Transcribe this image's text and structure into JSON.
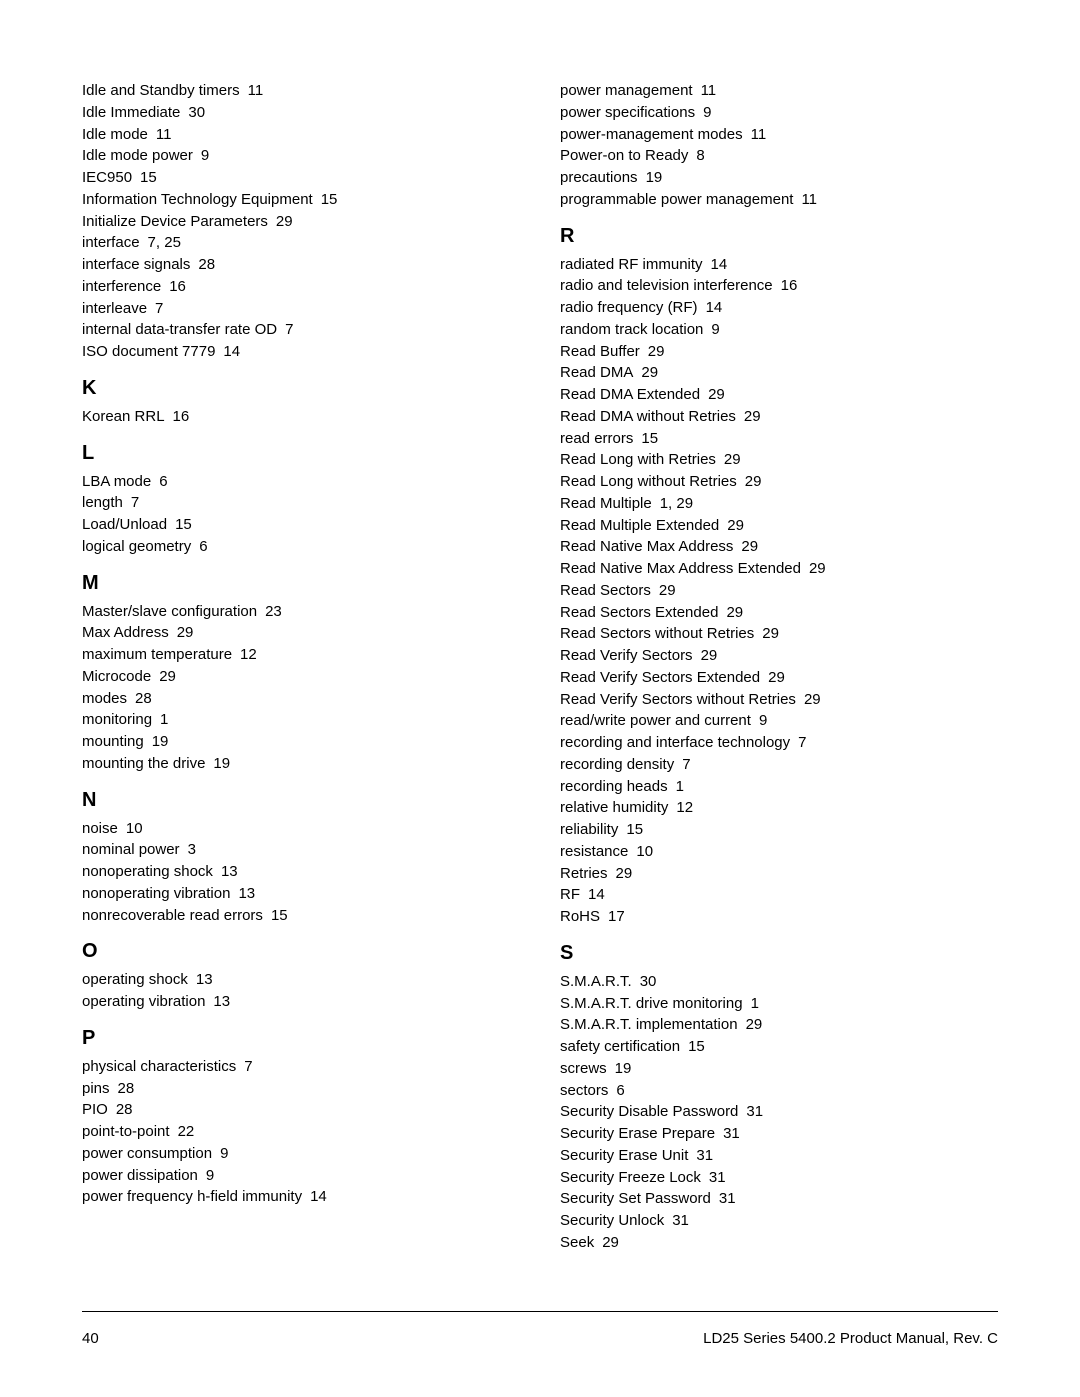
{
  "left": {
    "groups": [
      {
        "letter": null,
        "entries": [
          {
            "term": "Idle and Standby timers",
            "pages": "11"
          },
          {
            "term": "Idle Immediate",
            "pages": "30"
          },
          {
            "term": "Idle mode",
            "pages": "11"
          },
          {
            "term": "Idle mode power",
            "pages": "9"
          },
          {
            "term": "IEC950",
            "pages": "15"
          },
          {
            "term": "Information Technology Equipment",
            "pages": "15"
          },
          {
            "term": "Initialize Device Parameters",
            "pages": "29"
          },
          {
            "term": "interface",
            "pages": "7,  25"
          },
          {
            "term": "interface signals",
            "pages": "28"
          },
          {
            "term": "interference",
            "pages": "16"
          },
          {
            "term": "interleave",
            "pages": "7"
          },
          {
            "term": "internal data-transfer rate OD",
            "pages": "7"
          },
          {
            "term": "ISO document 7779",
            "pages": "14"
          }
        ]
      },
      {
        "letter": "K",
        "entries": [
          {
            "term": "Korean RRL",
            "pages": "16"
          }
        ]
      },
      {
        "letter": "L",
        "entries": [
          {
            "term": "LBA mode",
            "pages": "6"
          },
          {
            "term": "length",
            "pages": "7"
          },
          {
            "term": "Load/Unload",
            "pages": "15"
          },
          {
            "term": "logical geometry",
            "pages": "6"
          }
        ]
      },
      {
        "letter": "M",
        "entries": [
          {
            "term": "Master/slave configuration",
            "pages": "23"
          },
          {
            "term": "Max Address",
            "pages": "29"
          },
          {
            "term": "maximum temperature",
            "pages": "12"
          },
          {
            "term": "Microcode",
            "pages": "29"
          },
          {
            "term": "modes",
            "pages": "28"
          },
          {
            "term": "monitoring",
            "pages": "1"
          },
          {
            "term": "mounting",
            "pages": "19"
          },
          {
            "term": "mounting the drive",
            "pages": "19"
          }
        ]
      },
      {
        "letter": "N",
        "entries": [
          {
            "term": "noise",
            "pages": "10"
          },
          {
            "term": "nominal power",
            "pages": "3"
          },
          {
            "term": "nonoperating shock",
            "pages": "13"
          },
          {
            "term": "nonoperating vibration",
            "pages": "13"
          },
          {
            "term": "nonrecoverable read errors",
            "pages": "15"
          }
        ]
      },
      {
        "letter": "O",
        "entries": [
          {
            "term": "operating shock",
            "pages": "13"
          },
          {
            "term": "operating vibration",
            "pages": "13"
          }
        ]
      },
      {
        "letter": "P",
        "entries": [
          {
            "term": "physical characteristics",
            "pages": "7"
          },
          {
            "term": "pins",
            "pages": "28"
          },
          {
            "term": "PIO",
            "pages": "28"
          },
          {
            "term": "point-to-point",
            "pages": "22"
          },
          {
            "term": "power consumption",
            "pages": "9"
          },
          {
            "term": "power dissipation",
            "pages": "9"
          },
          {
            "term": "power frequency h-field immunity",
            "pages": "14"
          }
        ]
      }
    ]
  },
  "right": {
    "groups": [
      {
        "letter": null,
        "entries": [
          {
            "term": "power management",
            "pages": "11"
          },
          {
            "term": "power specifications",
            "pages": "9"
          },
          {
            "term": "power-management modes",
            "pages": "11"
          },
          {
            "term": "Power-on to Ready",
            "pages": "8"
          },
          {
            "term": "precautions",
            "pages": "19"
          },
          {
            "term": "programmable power management",
            "pages": "11"
          }
        ]
      },
      {
        "letter": "R",
        "entries": [
          {
            "term": "radiated RF immunity",
            "pages": "14"
          },
          {
            "term": "radio and television interference",
            "pages": "16"
          },
          {
            "term": "radio frequency (RF)",
            "pages": "14"
          },
          {
            "term": "random track location",
            "pages": "9"
          },
          {
            "term": "Read Buffer",
            "pages": "29"
          },
          {
            "term": "Read DMA",
            "pages": "29"
          },
          {
            "term": "Read DMA Extended",
            "pages": "29"
          },
          {
            "term": "Read DMA without Retries",
            "pages": "29"
          },
          {
            "term": "read errors",
            "pages": "15"
          },
          {
            "term": "Read Long with Retries",
            "pages": "29"
          },
          {
            "term": "Read Long without Retries",
            "pages": "29"
          },
          {
            "term": "Read Multiple",
            "pages": "1,  29"
          },
          {
            "term": "Read Multiple Extended",
            "pages": "29"
          },
          {
            "term": "Read Native Max Address",
            "pages": "29"
          },
          {
            "term": "Read Native Max Address Extended",
            "pages": "29"
          },
          {
            "term": "Read Sectors",
            "pages": "29"
          },
          {
            "term": "Read Sectors Extended",
            "pages": "29"
          },
          {
            "term": "Read Sectors without Retries",
            "pages": "29"
          },
          {
            "term": "Read Verify Sectors",
            "pages": "29"
          },
          {
            "term": "Read Verify Sectors Extended",
            "pages": "29"
          },
          {
            "term": "Read Verify Sectors without Retries",
            "pages": "29"
          },
          {
            "term": "read/write power and current",
            "pages": "9"
          },
          {
            "term": "recording and interface technology",
            "pages": "7"
          },
          {
            "term": "recording density",
            "pages": "7"
          },
          {
            "term": "recording heads",
            "pages": "1"
          },
          {
            "term": "relative humidity",
            "pages": "12"
          },
          {
            "term": "reliability",
            "pages": "15"
          },
          {
            "term": "resistance",
            "pages": "10"
          },
          {
            "term": "Retries",
            "pages": "29"
          },
          {
            "term": "RF",
            "pages": "14"
          },
          {
            "term": "RoHS",
            "pages": "17"
          }
        ]
      },
      {
        "letter": "S",
        "entries": [
          {
            "term": "S.M.A.R.T.",
            "pages": "30"
          },
          {
            "term": "S.M.A.R.T. drive monitoring",
            "pages": "1"
          },
          {
            "term": "S.M.A.R.T. implementation",
            "pages": "29"
          },
          {
            "term": "safety certification",
            "pages": "15"
          },
          {
            "term": "screws",
            "pages": "19"
          },
          {
            "term": "sectors",
            "pages": "6"
          },
          {
            "term": "Security Disable Password",
            "pages": "31"
          },
          {
            "term": "Security Erase Prepare",
            "pages": "31"
          },
          {
            "term": "Security Erase Unit",
            "pages": "31"
          },
          {
            "term": "Security Freeze Lock",
            "pages": "31"
          },
          {
            "term": "Security Set Password",
            "pages": "31"
          },
          {
            "term": "Security Unlock",
            "pages": "31"
          },
          {
            "term": "Seek",
            "pages": "29"
          }
        ]
      }
    ]
  },
  "footer": {
    "page_number": "40",
    "title": "LD25 Series 5400.2 Product Manual, Rev. C"
  }
}
